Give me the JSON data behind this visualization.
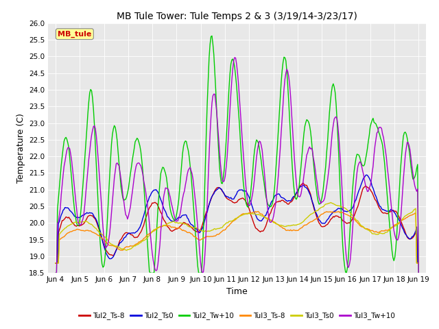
{
  "title": "MB Tule Tower: Tule Temps 2 & 3 (3/19/14-3/23/17)",
  "xlabel": "Time",
  "ylabel": "Temperature (C)",
  "ylim": [
    18.5,
    26.0
  ],
  "yticks": [
    18.5,
    19.0,
    19.5,
    20.0,
    20.5,
    21.0,
    21.5,
    22.0,
    22.5,
    23.0,
    23.5,
    24.0,
    24.5,
    25.0,
    25.5,
    26.0
  ],
  "xtick_labels": [
    "Jun 4",
    "Jun 5",
    "Jun 6",
    "Jun 7",
    "Jun 8",
    "Jun 9",
    "Jun 10",
    "Jun 11",
    "Jun 12",
    "Jun 13",
    "Jun 14",
    "Jun 15",
    "Jun 16",
    "Jun 17",
    "Jun 18",
    "Jun 19"
  ],
  "watermark_text": "MB_tule",
  "watermark_color": "#cc0000",
  "watermark_bg": "#ffff99",
  "legend_labels": [
    "Tul2_Ts-8",
    "Tul2_Ts0",
    "Tul2_Tw+10",
    "Tul3_Ts-8",
    "Tul3_Ts0",
    "Tul3_Tw+10"
  ],
  "legend_colors": [
    "#cc0000",
    "#0000dd",
    "#00cc00",
    "#ff8800",
    "#cccc00",
    "#aa00cc"
  ],
  "plot_bg_color": "#e8e8e8",
  "background_color": "#ffffff",
  "grid_color": "#ffffff",
  "linewidth": 1.0
}
